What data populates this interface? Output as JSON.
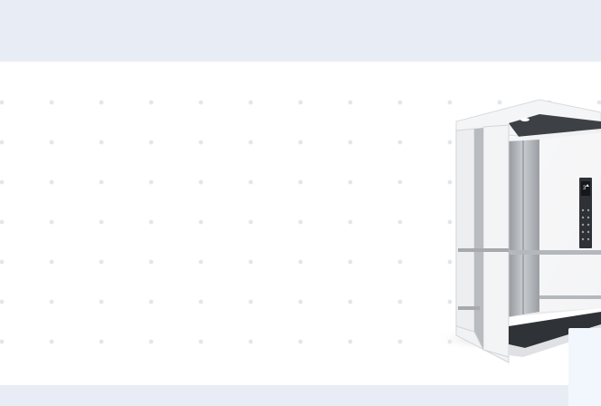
{
  "hero": {
    "image": {
      "icon": "elevator-cabin-icon",
      "display": {
        "floor": "3",
        "direction": "up"
      }
    }
  },
  "colors": {
    "band": "#e8ecf5",
    "dot": "#e3e6eb",
    "frame": "#f1f2f4",
    "steel": "#b9bcc1",
    "card": "#f2f6fd"
  }
}
